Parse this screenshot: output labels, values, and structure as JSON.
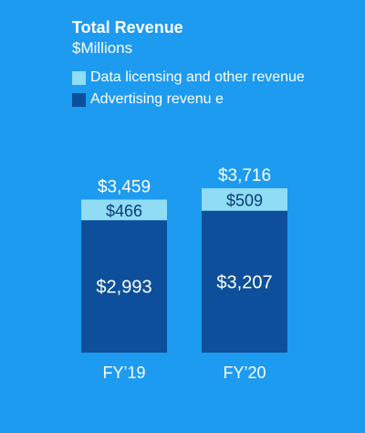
{
  "colors": {
    "background": "#1d9bf0",
    "advertising": "#0d4f9a",
    "data_licensing": "#8fdcf4",
    "text_light": "#ffffff",
    "text_dark": "#0b3d78"
  },
  "chart_data": {
    "type": "bar",
    "stacked": true,
    "title": "Total Revenue",
    "subtitle": "$Millions",
    "categories": [
      "FY’19",
      "FY’20"
    ],
    "series": [
      {
        "name": "Advertising revenu e",
        "values": [
          2993,
          3207
        ],
        "labels": [
          "$2,993",
          "$3,207"
        ],
        "color_key": "advertising"
      },
      {
        "name": "Data licensing and other revenue",
        "values": [
          466,
          509
        ],
        "labels": [
          "$466",
          "$509"
        ],
        "color_key": "data_licensing"
      }
    ],
    "totals": [
      3459,
      3716
    ],
    "total_labels": [
      "$3,459",
      "$3,716"
    ],
    "legend_order": [
      1,
      0
    ],
    "legend_position": "top-left",
    "grid": false,
    "ylim": [
      0,
      3716
    ]
  }
}
